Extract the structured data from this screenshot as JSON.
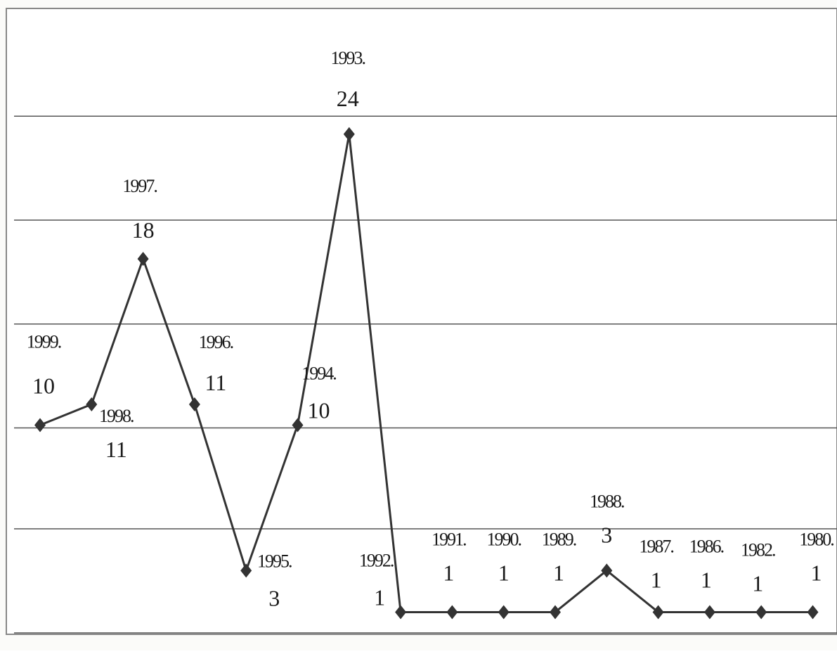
{
  "chart_data": {
    "type": "line",
    "title": "",
    "xlabel": "",
    "ylabel": "",
    "ylim": [
      0,
      27
    ],
    "grid": true,
    "legend": "none",
    "categories": [
      "1999.",
      "1998.",
      "1997.",
      "1996.",
      "1995.",
      "1994.",
      "1993.",
      "1992.",
      "1991.",
      "1990.",
      "1989.",
      "1988.",
      "1987.",
      "1986.",
      "1982.",
      "1980."
    ],
    "values": [
      10,
      11,
      18,
      11,
      3,
      10,
      24,
      1,
      1,
      1,
      1,
      3,
      1,
      1,
      1,
      1
    ],
    "value_labels": [
      "10",
      "11",
      "18",
      "11",
      "3",
      "10",
      "24",
      "1",
      "1",
      "1",
      "1",
      "3",
      "1",
      "1",
      "1",
      "1"
    ],
    "colors": {
      "line": "#333333",
      "marker": "#333333",
      "grid": "#555555",
      "frame": "#888888"
    }
  }
}
